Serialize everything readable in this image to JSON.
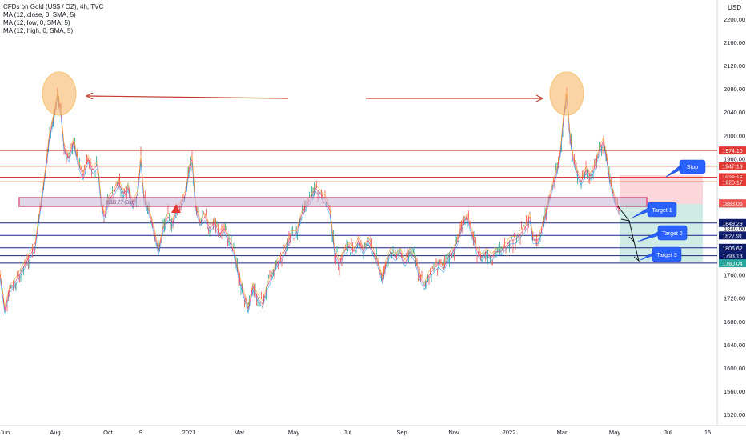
{
  "header": {
    "symbol_line": "CFDs on Gold (US$ / OZ), 4h, TVC",
    "indicators": [
      "MA (12, close, 0, SMA, 5)",
      "MA (12, low, 0, SMA, 5)",
      "MA (12, high, 0, SMA, 5)"
    ],
    "currency": "USD"
  },
  "price_scale": {
    "ticks": [
      "2200.00",
      "2160.00",
      "2120.00",
      "2080.00",
      "2040.00",
      "2000.00",
      "1960.00",
      "1920.00",
      "1880.00",
      "1840.00",
      "1800.00",
      "1760.00",
      "1720.00",
      "1680.00",
      "1640.00",
      "1600.00",
      "1560.00",
      "1520.00"
    ],
    "tick_values": [
      2200,
      2160,
      2120,
      2080,
      2040,
      2000,
      1960,
      1920,
      1880,
      1840,
      1800,
      1760,
      1720,
      1680,
      1640,
      1600,
      1560,
      1520
    ]
  },
  "time_axis": {
    "labels": [
      "Jun",
      "Aug",
      "Oct",
      "9",
      "2021",
      "Mar",
      "May",
      "Jul",
      "Sep",
      "Nov",
      "2022",
      "Mar",
      "May",
      "Jul",
      "15"
    ]
  },
  "levels": {
    "red": [
      {
        "label": "1974.10",
        "value": 1974.1
      },
      {
        "label": "1947.13",
        "value": 1947.13
      },
      {
        "label": "1928.15",
        "value": 1928.15
      },
      {
        "label": "1920.17",
        "value": 1920.17
      }
    ],
    "blue": [
      {
        "label": "1849.29",
        "value": 1849.29
      },
      {
        "label": "1827.91",
        "value": 1827.91
      },
      {
        "label": "1806.62",
        "value": 1806.62
      },
      {
        "label": "1793.13",
        "value": 1793.13
      },
      {
        "label": "1780.36",
        "value": 1780.36
      }
    ],
    "green_labels": [
      {
        "label": "1882.99",
        "value": 1882.99
      },
      {
        "label": "1780.04",
        "value": 1780.04
      }
    ],
    "current_label": {
      "label": "1883.06",
      "value": 1883.06
    }
  },
  "annotations": {
    "stop": "Stop",
    "targets": [
      "Target 1",
      "Target 2",
      "Target 3"
    ],
    "zone_text": "1893.77 (Bid)"
  },
  "price_path": [
    [
      0,
      1760
    ],
    [
      6,
      1700
    ],
    [
      12,
      1735
    ],
    [
      20,
      1750
    ],
    [
      28,
      1770
    ],
    [
      36,
      1790
    ],
    [
      44,
      1810
    ],
    [
      50,
      1870
    ],
    [
      56,
      1930
    ],
    [
      62,
      2000
    ],
    [
      67,
      2030
    ],
    [
      72,
      2070
    ],
    [
      76,
      2040
    ],
    [
      80,
      1980
    ],
    [
      86,
      1960
    ],
    [
      92,
      1990
    ],
    [
      98,
      1950
    ],
    [
      104,
      1930
    ],
    [
      110,
      1960
    ],
    [
      116,
      1940
    ],
    [
      122,
      1950
    ],
    [
      126,
      1890
    ],
    [
      130,
      1860
    ],
    [
      136,
      1890
    ],
    [
      142,
      1900
    ],
    [
      148,
      1920
    ],
    [
      154,
      1900
    ],
    [
      160,
      1910
    ],
    [
      166,
      1880
    ],
    [
      172,
      1900
    ],
    [
      176,
      1960
    ],
    [
      180,
      1890
    ],
    [
      186,
      1870
    ],
    [
      192,
      1840
    ],
    [
      198,
      1800
    ],
    [
      204,
      1840
    ],
    [
      210,
      1860
    ],
    [
      216,
      1850
    ],
    [
      220,
      1870
    ],
    [
      226,
      1880
    ],
    [
      232,
      1900
    ],
    [
      236,
      1940
    ],
    [
      240,
      1960
    ],
    [
      244,
      1880
    ],
    [
      250,
      1850
    ],
    [
      256,
      1860
    ],
    [
      262,
      1840
    ],
    [
      268,
      1850
    ],
    [
      274,
      1830
    ],
    [
      280,
      1840
    ],
    [
      286,
      1820
    ],
    [
      292,
      1800
    ],
    [
      298,
      1760
    ],
    [
      304,
      1730
    ],
    [
      310,
      1700
    ],
    [
      316,
      1740
    ],
    [
      322,
      1720
    ],
    [
      328,
      1710
    ],
    [
      334,
      1740
    ],
    [
      340,
      1760
    ],
    [
      346,
      1780
    ],
    [
      352,
      1790
    ],
    [
      358,
      1810
    ],
    [
      364,
      1830
    ],
    [
      370,
      1830
    ],
    [
      376,
      1860
    ],
    [
      382,
      1880
    ],
    [
      388,
      1890
    ],
    [
      394,
      1910
    ],
    [
      400,
      1900
    ],
    [
      406,
      1890
    ],
    [
      412,
      1870
    ],
    [
      418,
      1800
    ],
    [
      424,
      1780
    ],
    [
      430,
      1800
    ],
    [
      436,
      1810
    ],
    [
      442,
      1800
    ],
    [
      448,
      1820
    ],
    [
      454,
      1800
    ],
    [
      460,
      1820
    ],
    [
      466,
      1800
    ],
    [
      472,
      1780
    ],
    [
      478,
      1750
    ],
    [
      482,
      1780
    ],
    [
      488,
      1800
    ],
    [
      494,
      1790
    ],
    [
      500,
      1800
    ],
    [
      506,
      1780
    ],
    [
      512,
      1800
    ],
    [
      518,
      1790
    ],
    [
      524,
      1760
    ],
    [
      530,
      1740
    ],
    [
      536,
      1760
    ],
    [
      542,
      1770
    ],
    [
      548,
      1780
    ],
    [
      554,
      1770
    ],
    [
      560,
      1790
    ],
    [
      566,
      1800
    ],
    [
      572,
      1820
    ],
    [
      578,
      1850
    ],
    [
      584,
      1860
    ],
    [
      590,
      1830
    ],
    [
      596,
      1800
    ],
    [
      602,
      1790
    ],
    [
      608,
      1800
    ],
    [
      614,
      1790
    ],
    [
      620,
      1800
    ],
    [
      626,
      1800
    ],
    [
      632,
      1810
    ],
    [
      638,
      1820
    ],
    [
      644,
      1820
    ],
    [
      650,
      1830
    ],
    [
      656,
      1840
    ],
    [
      662,
      1860
    ],
    [
      666,
      1820
    ],
    [
      672,
      1820
    ],
    [
      678,
      1840
    ],
    [
      684,
      1880
    ],
    [
      690,
      1910
    ],
    [
      696,
      1940
    ],
    [
      700,
      1970
    ],
    [
      704,
      2030
    ],
    [
      708,
      2070
    ],
    [
      712,
      2000
    ],
    [
      716,
      1960
    ],
    [
      720,
      1940
    ],
    [
      726,
      1920
    ],
    [
      732,
      1940
    ],
    [
      738,
      1930
    ],
    [
      744,
      1950
    ],
    [
      750,
      1980
    ],
    [
      754,
      1990
    ],
    [
      758,
      1960
    ],
    [
      762,
      1920
    ],
    [
      766,
      1900
    ],
    [
      770,
      1880
    ],
    [
      774,
      1870
    ]
  ]
}
